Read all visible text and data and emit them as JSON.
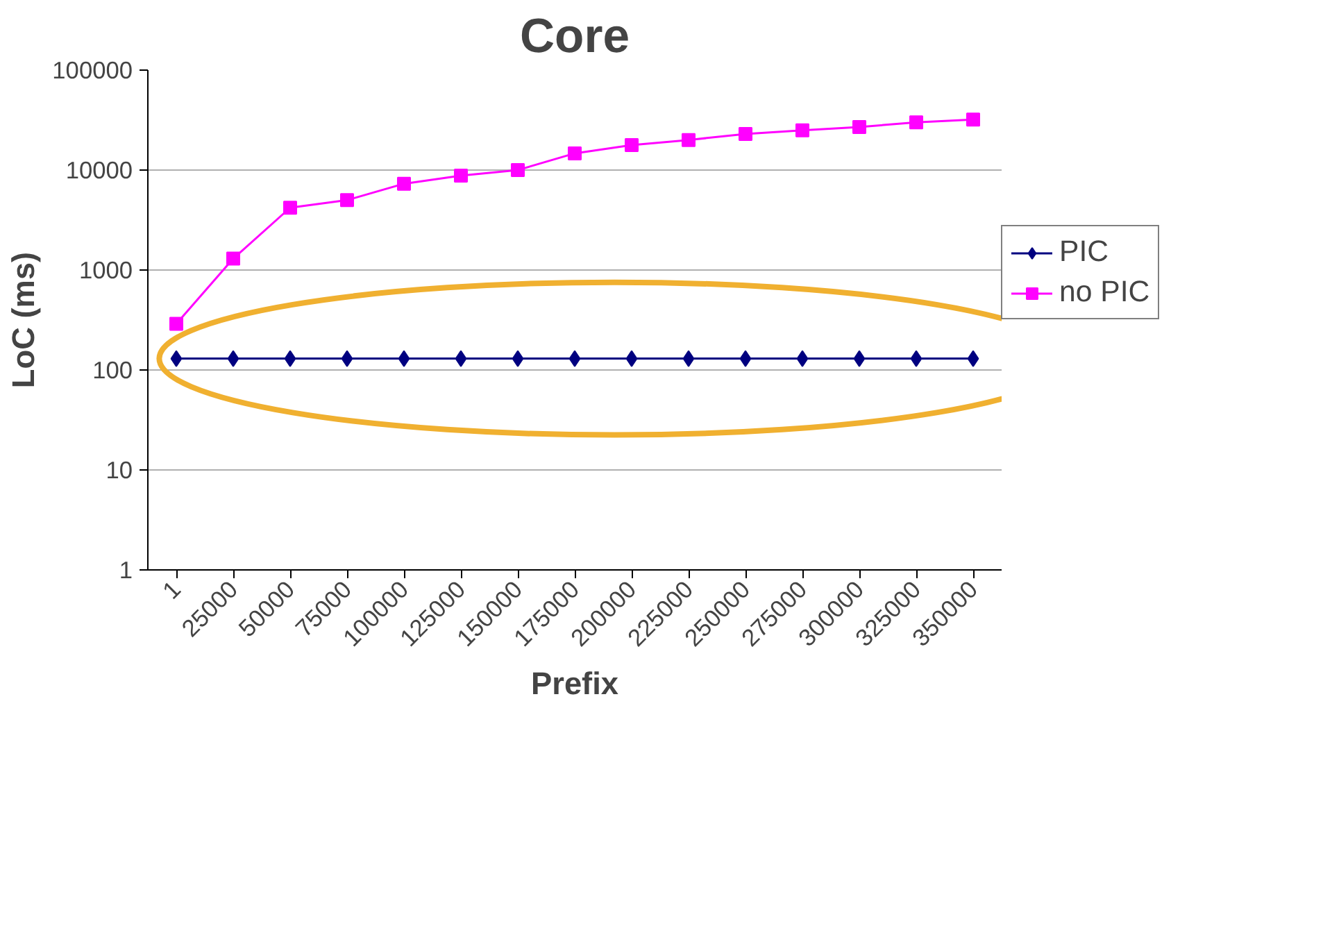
{
  "chart_data": {
    "type": "line",
    "title": "Core",
    "xlabel": "Prefix",
    "ylabel": "LoC (ms)",
    "categories": [
      "1",
      "25000",
      "50000",
      "75000",
      "100000",
      "125000",
      "150000",
      "175000",
      "200000",
      "225000",
      "250000",
      "275000",
      "300000",
      "325000",
      "350000"
    ],
    "series": [
      {
        "name": "PIC",
        "color": "#000080",
        "marker": "diamond",
        "values": [
          130,
          130,
          130,
          130,
          130,
          130,
          130,
          130,
          130,
          130,
          130,
          130,
          130,
          130,
          130
        ]
      },
      {
        "name": "no PIC",
        "color": "#ff00ff",
        "marker": "square",
        "values": [
          290,
          1300,
          4200,
          5000,
          7300,
          8800,
          10000,
          14700,
          17800,
          20000,
          23000,
          25000,
          27000,
          30000,
          32000
        ]
      }
    ],
    "log": "y",
    "ylim": [
      1,
      100000
    ],
    "yticks": [
      1,
      10,
      100,
      1000,
      10000,
      100000
    ],
    "grid": "y",
    "legend": "right"
  }
}
